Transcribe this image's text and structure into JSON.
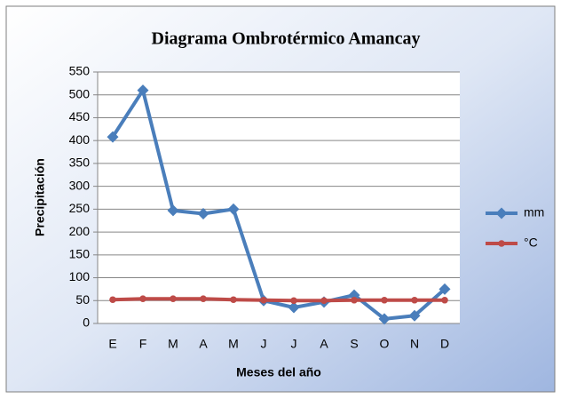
{
  "chart_data": {
    "type": "line",
    "title": "Diagrama Ombrotérmico Amancay",
    "x_label": "Meses del año",
    "y_label": "Precipitación",
    "categories": [
      "E",
      "F",
      "M",
      "A",
      "M",
      "J",
      "J",
      "A",
      "S",
      "O",
      "N",
      "D"
    ],
    "series": [
      {
        "name": "mm",
        "color": "#4a7ebb",
        "marker": "diamond",
        "values": [
          408,
          510,
          247,
          240,
          250,
          50,
          35,
          47,
          62,
          10,
          17,
          75
        ]
      },
      {
        "name": "°C",
        "color": "#be4b48",
        "marker": "circle",
        "values": [
          52,
          54,
          54,
          54,
          52,
          51,
          50,
          50,
          51,
          51,
          51,
          51
        ]
      }
    ],
    "ylim": [
      0,
      550
    ],
    "yticks": [
      0,
      50,
      100,
      150,
      200,
      250,
      300,
      350,
      400,
      450,
      500,
      550
    ],
    "grid": true,
    "legend": "right"
  }
}
